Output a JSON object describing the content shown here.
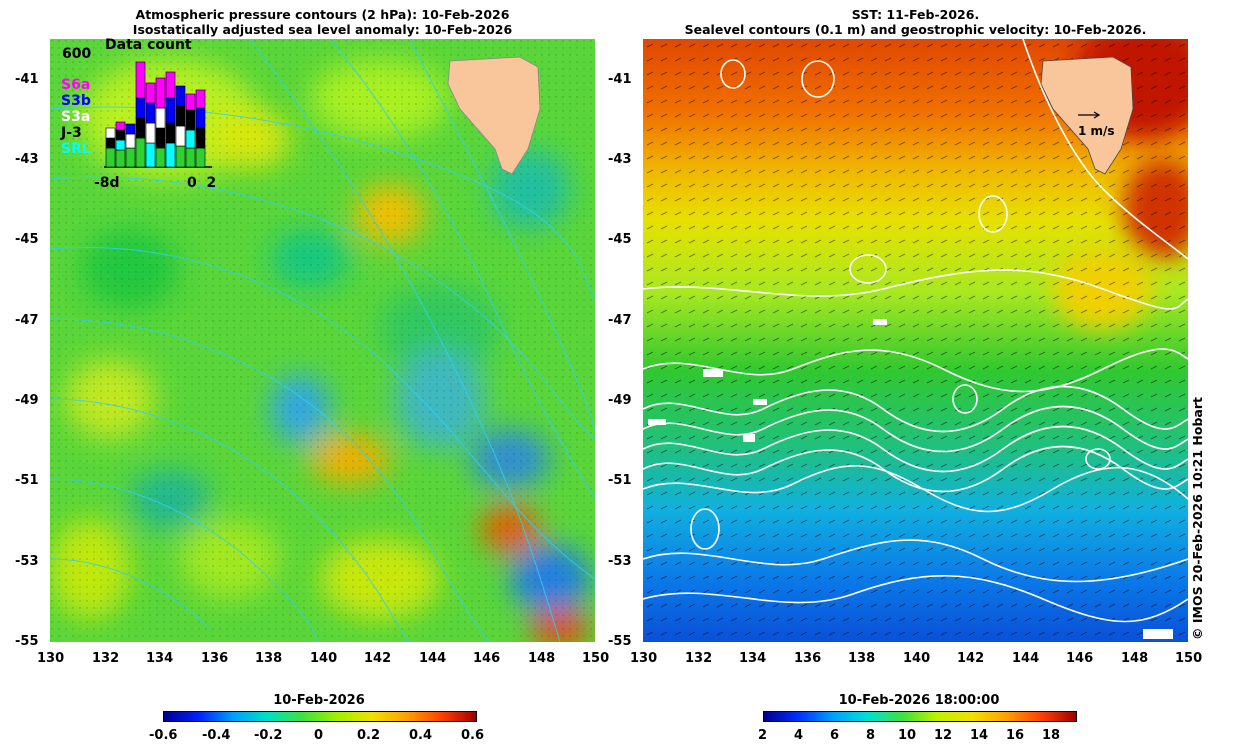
{
  "left_panel": {
    "title_line1": "Atmospheric pressure contours (2 hPa): 10-Feb-2026",
    "title_line2": "Isostatically adjusted sea level anomaly: 10-Feb-2026",
    "inset": {
      "max_label": "600",
      "title": "Data count",
      "satellites": [
        {
          "name": "S6a",
          "color": "#ff00ff"
        },
        {
          "name": "S3b",
          "color": "#0000ff"
        },
        {
          "name": "S3a",
          "color": "#ffffff"
        },
        {
          "name": "J-3",
          "color": "#000000"
        },
        {
          "name": "SRL",
          "color": "#00ffff"
        }
      ],
      "x_left": "-8d",
      "x_right": "0  2"
    },
    "colorbar": {
      "title": "10-Feb-2026",
      "ticks": [
        "-0.6",
        "-0.4",
        "-0.2",
        "0",
        "0.2",
        "0.4",
        "0.6"
      ],
      "colors": [
        "#000090",
        "#0020ff",
        "#00a0ff",
        "#00e0c0",
        "#40e040",
        "#a0f000",
        "#f0e000",
        "#ffa000",
        "#ff4000",
        "#a00000"
      ]
    }
  },
  "right_panel": {
    "title_line1": "SST: 11-Feb-2026.",
    "title_line2": "Sealevel contours (0.1 m) and geostrophic velocity: 10-Feb-2026.",
    "scale_label": "1 m/s",
    "colorbar": {
      "title": "10-Feb-2026 18:00:00",
      "ticks": [
        "2",
        "4",
        "6",
        "8",
        "10",
        "12",
        "14",
        "16",
        "18"
      ],
      "colors": [
        "#000090",
        "#0030ff",
        "#00a0ff",
        "#00e0d0",
        "#40e040",
        "#c0f000",
        "#f0e000",
        "#ffa000",
        "#ff4000",
        "#a00000"
      ]
    }
  },
  "axes": {
    "lat_ticks": [
      "-41",
      "-43",
      "-45",
      "-47",
      "-49",
      "-51",
      "-53",
      "-55"
    ],
    "lon_ticks": [
      "130",
      "132",
      "134",
      "136",
      "138",
      "140",
      "142",
      "144",
      "146",
      "148",
      "150"
    ]
  },
  "credit": "© IMOS 20-Feb-2026 10:21 Hobart"
}
